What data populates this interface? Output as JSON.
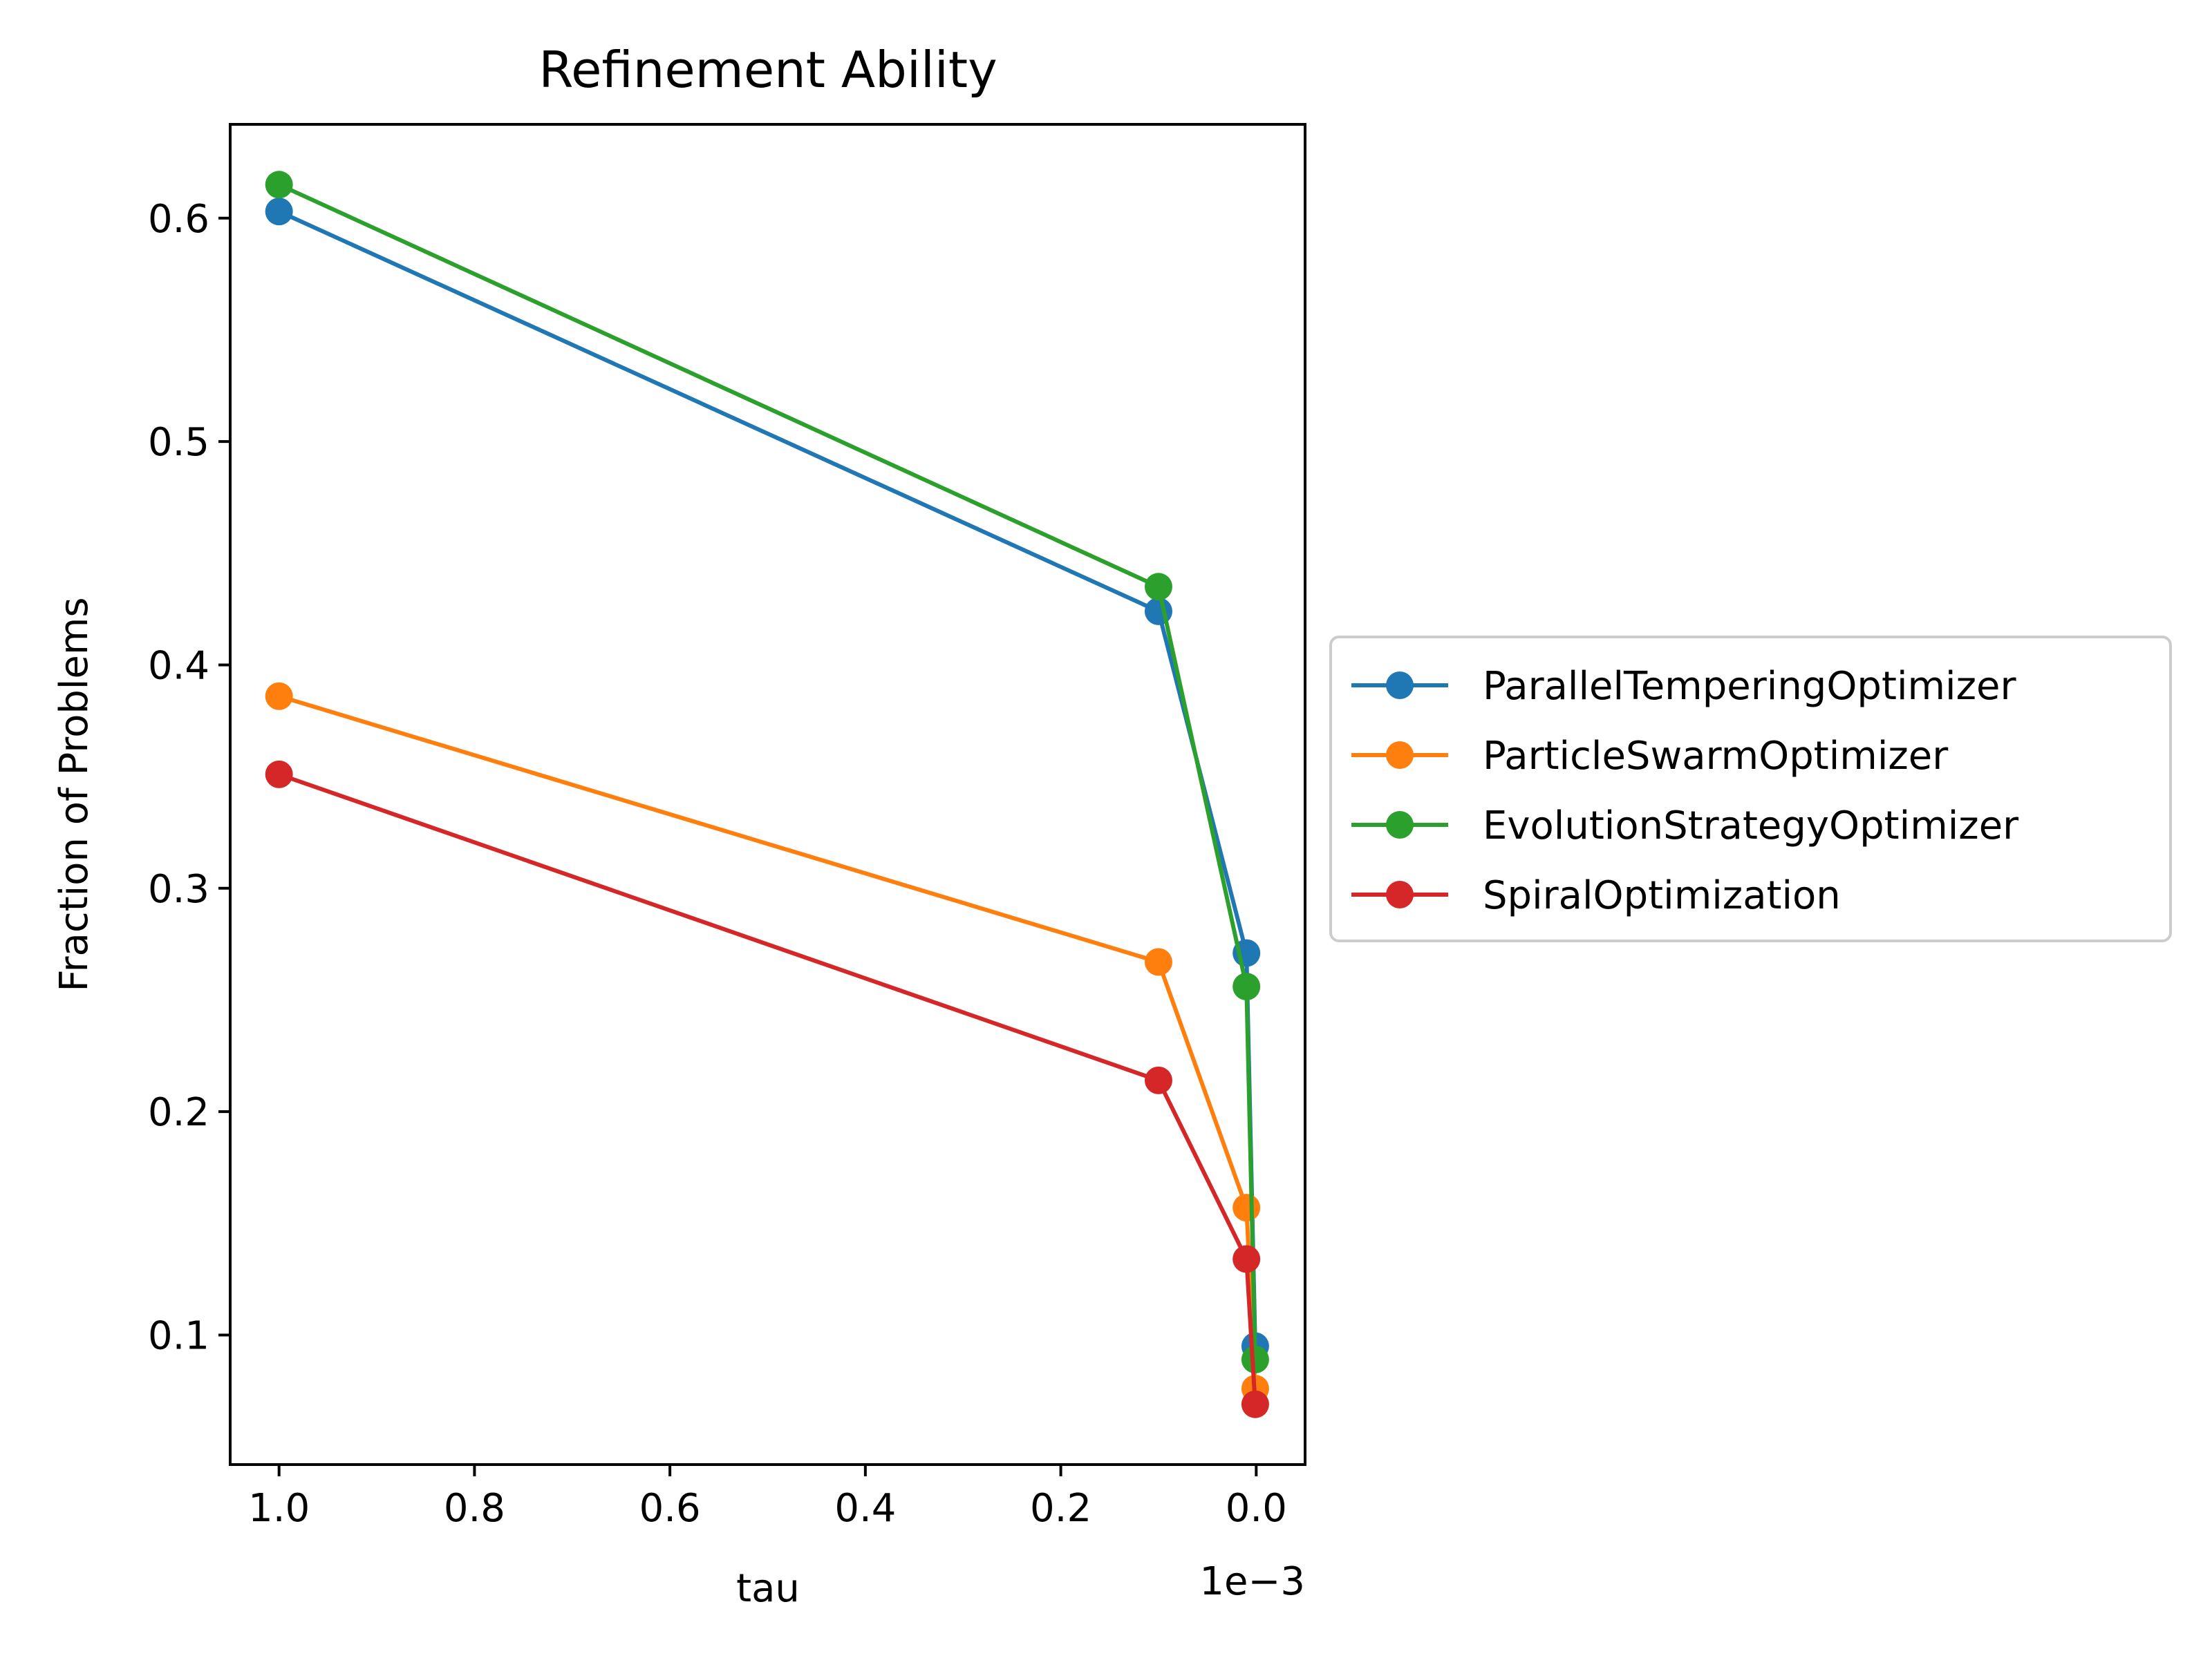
{
  "chart_data": {
    "type": "line",
    "title": "Refinement Ability",
    "xlabel": "tau",
    "ylabel": "Fraction of Problems",
    "x_offset_label": "1e−3",
    "xlim": [
      0.00105,
      -5e-05
    ],
    "ylim": [
      0.042,
      0.642
    ],
    "x_inverted": true,
    "x_ticks": [
      0.001,
      0.0008,
      0.0006,
      0.0004,
      0.0002,
      0.0
    ],
    "x_tick_labels": [
      "1.0",
      "0.8",
      "0.6",
      "0.4",
      "0.2",
      "0.0"
    ],
    "y_ticks": [
      0.1,
      0.2,
      0.3,
      0.4,
      0.5,
      0.6
    ],
    "y_tick_labels": [
      "0.1",
      "0.2",
      "0.3",
      "0.4",
      "0.5",
      "0.6"
    ],
    "grid": false,
    "legend_position": "outside-right",
    "x": [
      0.001,
      0.0001,
      1e-05,
      1e-06
    ],
    "series": [
      {
        "name": "ParallelTemperingOptimizer",
        "color": "#1f77b4",
        "values": [
          0.603,
          0.424,
          0.271,
          0.095
        ]
      },
      {
        "name": "ParticleSwarmOptimizer",
        "color": "#ff7f0e",
        "values": [
          0.386,
          0.267,
          0.157,
          0.076
        ]
      },
      {
        "name": "EvolutionStrategyOptimizer",
        "color": "#2ca02c",
        "values": [
          0.615,
          0.435,
          0.256,
          0.089
        ]
      },
      {
        "name": "SpiralOptimization",
        "color": "#d62728",
        "values": [
          0.351,
          0.214,
          0.134,
          0.069
        ]
      }
    ]
  }
}
